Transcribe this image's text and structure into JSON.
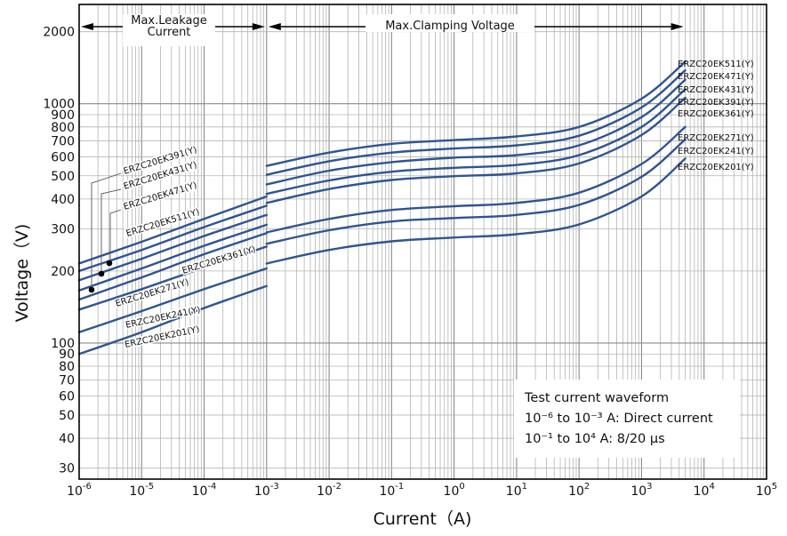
{
  "chart_data": {
    "type": "line",
    "xlabel": "Current（A)",
    "ylabel": "Voltage（V)",
    "x_scale": "log",
    "y_scale": "log",
    "xlim": [
      1e-06,
      100000.0
    ],
    "ylim": [
      27,
      2600
    ],
    "grid": true,
    "x_ticks": [
      {
        "v": 1e-06,
        "base": "10",
        "exp": "-6"
      },
      {
        "v": 1e-05,
        "base": "10",
        "exp": "-5"
      },
      {
        "v": 0.0001,
        "base": "10",
        "exp": "-4"
      },
      {
        "v": 0.001,
        "base": "10",
        "exp": "-3"
      },
      {
        "v": 0.01,
        "base": "10",
        "exp": "-2"
      },
      {
        "v": 0.1,
        "base": "10",
        "exp": "-1"
      },
      {
        "v": 1,
        "base": "10",
        "exp": "0"
      },
      {
        "v": 10,
        "base": "10",
        "exp": "1"
      },
      {
        "v": 100,
        "base": "10",
        "exp": "2"
      },
      {
        "v": 1000,
        "base": "10",
        "exp": "3"
      },
      {
        "v": 10000,
        "base": "10",
        "exp": "4"
      },
      {
        "v": 100000,
        "base": "10",
        "exp": "5"
      }
    ],
    "y_ticks": [
      "30",
      "40",
      "50",
      "60",
      "70",
      "80",
      "90",
      "100",
      "200",
      "300",
      "400",
      "500",
      "600",
      "700",
      "800",
      "900",
      "1000",
      "2000"
    ],
    "regions": [
      {
        "label_lines": [
          "Max.Leakage",
          "Current"
        ],
        "x_from": 1e-06,
        "x_to": 0.001
      },
      {
        "label_lines": [
          "Max.Clamping Voltage"
        ],
        "x_from": 0.001,
        "x_to": 5000
      }
    ],
    "note": {
      "lines": [
        "Test current waveform",
        "10⁻⁶ to 10⁻³ A: Direct current",
        "10⁻¹ to 10⁴ A: 8/20 μs"
      ]
    },
    "colors": {
      "curve": "#2f5590",
      "grid": "#b4b4b4",
      "frame": "#000000"
    },
    "series": [
      {
        "name": "ERZC20EK511(Y)",
        "leakage": [
          [
            1e-06,
            215
          ],
          [
            1e-05,
            265
          ],
          [
            0.0001,
            330
          ],
          [
            0.001,
            410
          ]
        ],
        "clamp": [
          [
            0.001,
            550
          ],
          [
            0.01,
            625
          ],
          [
            0.1,
            680
          ],
          [
            1,
            705
          ],
          [
            10,
            730
          ],
          [
            100,
            800
          ],
          [
            1000,
            1050
          ],
          [
            5000,
            1500
          ]
        ]
      },
      {
        "name": "ERZC20EK471(Y)",
        "leakage": [
          [
            1e-06,
            200
          ],
          [
            1e-05,
            245
          ],
          [
            0.0001,
            305
          ],
          [
            0.001,
            375
          ]
        ],
        "clamp": [
          [
            0.001,
            505
          ],
          [
            0.01,
            575
          ],
          [
            0.1,
            625
          ],
          [
            1,
            650
          ],
          [
            10,
            670
          ],
          [
            100,
            735
          ],
          [
            1000,
            965
          ],
          [
            5000,
            1380
          ]
        ]
      },
      {
        "name": "ERZC20EK431(Y)",
        "leakage": [
          [
            1e-06,
            183
          ],
          [
            1e-05,
            225
          ],
          [
            0.0001,
            280
          ],
          [
            0.001,
            343
          ]
        ],
        "clamp": [
          [
            0.001,
            460
          ],
          [
            0.01,
            525
          ],
          [
            0.1,
            570
          ],
          [
            1,
            595
          ],
          [
            10,
            610
          ],
          [
            100,
            670
          ],
          [
            1000,
            880
          ],
          [
            5000,
            1260
          ]
        ]
      },
      {
        "name": "ERZC20EK391(Y)",
        "leakage": [
          [
            1e-06,
            166
          ],
          [
            1e-05,
            205
          ],
          [
            0.0001,
            255
          ],
          [
            0.001,
            312
          ]
        ],
        "clamp": [
          [
            0.001,
            420
          ],
          [
            0.01,
            478
          ],
          [
            0.1,
            520
          ],
          [
            1,
            540
          ],
          [
            10,
            555
          ],
          [
            100,
            610
          ],
          [
            1000,
            800
          ],
          [
            5000,
            1150
          ]
        ]
      },
      {
        "name": "ERZC20EK361(Y)",
        "leakage": [
          [
            1e-06,
            152
          ],
          [
            1e-05,
            188
          ],
          [
            0.0001,
            235
          ],
          [
            0.001,
            288
          ]
        ],
        "clamp": [
          [
            0.001,
            385
          ],
          [
            0.01,
            440
          ],
          [
            0.1,
            480
          ],
          [
            1,
            498
          ],
          [
            10,
            512
          ],
          [
            100,
            563
          ],
          [
            1000,
            740
          ],
          [
            5000,
            1060
          ]
        ]
      },
      {
        "name": "ERZC20EK271(Y)",
        "leakage": [
          [
            1e-06,
            138
          ],
          [
            1e-05,
            168
          ],
          [
            0.0001,
            207
          ],
          [
            0.001,
            253
          ]
        ],
        "clamp": [
          [
            0.001,
            290
          ],
          [
            0.01,
            330
          ],
          [
            0.1,
            360
          ],
          [
            1,
            373
          ],
          [
            10,
            385
          ],
          [
            100,
            425
          ],
          [
            1000,
            560
          ],
          [
            5000,
            800
          ]
        ]
      },
      {
        "name": "ERZC20EK241(Y)",
        "leakage": [
          [
            1e-06,
            111
          ],
          [
            1e-05,
            136
          ],
          [
            0.0001,
            168
          ],
          [
            0.001,
            205
          ]
        ],
        "clamp": [
          [
            0.001,
            260
          ],
          [
            0.01,
            296
          ],
          [
            0.1,
            322
          ],
          [
            1,
            333
          ],
          [
            10,
            343
          ],
          [
            100,
            378
          ],
          [
            1000,
            495
          ],
          [
            5000,
            710
          ]
        ]
      },
      {
        "name": "ERZC20EK201(Y)",
        "leakage": [
          [
            1e-06,
            90
          ],
          [
            1e-05,
            111
          ],
          [
            0.0001,
            140
          ],
          [
            0.001,
            173
          ]
        ],
        "clamp": [
          [
            0.001,
            215
          ],
          [
            0.01,
            245
          ],
          [
            0.1,
            266
          ],
          [
            1,
            276
          ],
          [
            10,
            285
          ],
          [
            100,
            313
          ],
          [
            1000,
            410
          ],
          [
            5000,
            590
          ]
        ]
      }
    ],
    "left_labels": [
      {
        "text": "ERZC20EK391(Y)",
        "series": "ERZC20EK391(Y)"
      },
      {
        "text": "ERZC20EK431(Y)",
        "series": "ERZC20EK431(Y)"
      },
      {
        "text": "ERZC20EK471(Y)",
        "series": "ERZC20EK471(Y)"
      },
      {
        "text": "ERZC20EK511(Y)",
        "series": "ERZC20EK511(Y)"
      },
      {
        "text": "ERZC20EK361(Y)",
        "series": "ERZC20EK361(Y)"
      },
      {
        "text": "ERZC20EK271(Y)",
        "series": "ERZC20EK271(Y)"
      },
      {
        "text": "ERZC20EK241(Y)",
        "series": "ERZC20EK241(Y)"
      },
      {
        "text": "ERZC20EK201(Y)",
        "series": "ERZC20EK201(Y)"
      }
    ],
    "right_labels": [
      "ERZC20EK511(Y)",
      "ERZC20EK471(Y)",
      "ERZC20EK431(Y)",
      "ERZC20EK391(Y)",
      "ERZC20EK361(Y)",
      "ERZC20EK271(Y)",
      "ERZC20EK241(Y)",
      "ERZC20EK201(Y)"
    ]
  }
}
